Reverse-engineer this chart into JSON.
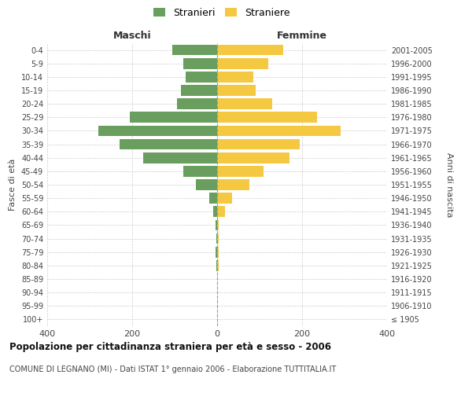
{
  "age_groups": [
    "100+",
    "95-99",
    "90-94",
    "85-89",
    "80-84",
    "75-79",
    "70-74",
    "65-69",
    "60-64",
    "55-59",
    "50-54",
    "45-49",
    "40-44",
    "35-39",
    "30-34",
    "25-29",
    "20-24",
    "15-19",
    "10-14",
    "5-9",
    "0-4"
  ],
  "birth_years": [
    "≤ 1905",
    "1906-1910",
    "1911-1915",
    "1916-1920",
    "1921-1925",
    "1926-1930",
    "1931-1935",
    "1936-1940",
    "1941-1945",
    "1946-1950",
    "1951-1955",
    "1956-1960",
    "1961-1965",
    "1966-1970",
    "1971-1975",
    "1976-1980",
    "1981-1985",
    "1986-1990",
    "1991-1995",
    "1996-2000",
    "2001-2005"
  ],
  "maschi": [
    0,
    0,
    0,
    0,
    2,
    3,
    2,
    3,
    10,
    18,
    50,
    80,
    175,
    230,
    280,
    205,
    95,
    85,
    75,
    80,
    105
  ],
  "femmine": [
    0,
    0,
    0,
    0,
    4,
    4,
    3,
    4,
    18,
    35,
    75,
    110,
    170,
    195,
    290,
    235,
    130,
    90,
    85,
    120,
    155
  ],
  "male_color": "#6a9e5e",
  "female_color": "#f5c842",
  "title": "Popolazione per cittadinanza straniera per età e sesso - 2006",
  "subtitle": "COMUNE DI LEGNANO (MI) - Dati ISTAT 1° gennaio 2006 - Elaborazione TUTTITALIA.IT",
  "xlabel_left": "Maschi",
  "xlabel_right": "Femmine",
  "ylabel_left": "Fasce di età",
  "ylabel_right": "Anni di nascita",
  "xlim": 400,
  "legend_labels": [
    "Stranieri",
    "Straniere"
  ],
  "bg_color": "#ffffff",
  "grid_color": "#cccccc",
  "bar_height": 0.8
}
